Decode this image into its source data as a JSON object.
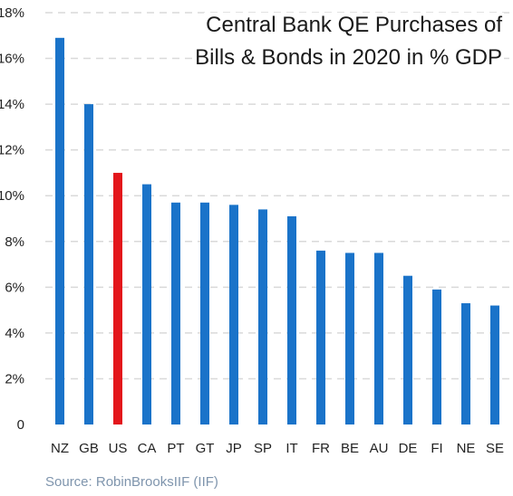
{
  "chart_data": {
    "type": "bar",
    "title_lines": [
      "Central Bank QE Purchases of",
      "Bills & Bonds in 2020 in % GDP"
    ],
    "xlabel": "",
    "ylabel": "",
    "categories": [
      "NZ",
      "GB",
      "US",
      "CA",
      "PT",
      "GT",
      "JP",
      "SP",
      "IT",
      "FR",
      "BE",
      "AU",
      "DE",
      "FI",
      "NE",
      "SE"
    ],
    "values": [
      16.9,
      14.0,
      11.0,
      10.5,
      9.7,
      9.7,
      9.6,
      9.4,
      9.1,
      7.6,
      7.5,
      7.5,
      6.5,
      5.9,
      5.3,
      5.2
    ],
    "bar_colors": [
      "#1a73c9",
      "#1a73c9",
      "#e3161b",
      "#1a73c9",
      "#1a73c9",
      "#1a73c9",
      "#1a73c9",
      "#1a73c9",
      "#1a73c9",
      "#1a73c9",
      "#1a73c9",
      "#1a73c9",
      "#1a73c9",
      "#1a73c9",
      "#1a73c9",
      "#1a73c9"
    ],
    "ylim": [
      0,
      18
    ],
    "yticks": [
      0,
      2,
      4,
      6,
      8,
      10,
      12,
      14,
      16,
      18
    ],
    "ytick_labels": [
      "0",
      "2%",
      "4%",
      "6%",
      "8%",
      "10%",
      "12%",
      "14%",
      "16%",
      "18%"
    ],
    "grid": "horizontal dashed",
    "colors": {
      "default_bar": "#1a73c9",
      "highlight_bar": "#e3161b",
      "grid": "#d9d9d9",
      "source_text": "#7f95ad"
    }
  },
  "source": "Source: RobinBrooksIIF (IIF)"
}
